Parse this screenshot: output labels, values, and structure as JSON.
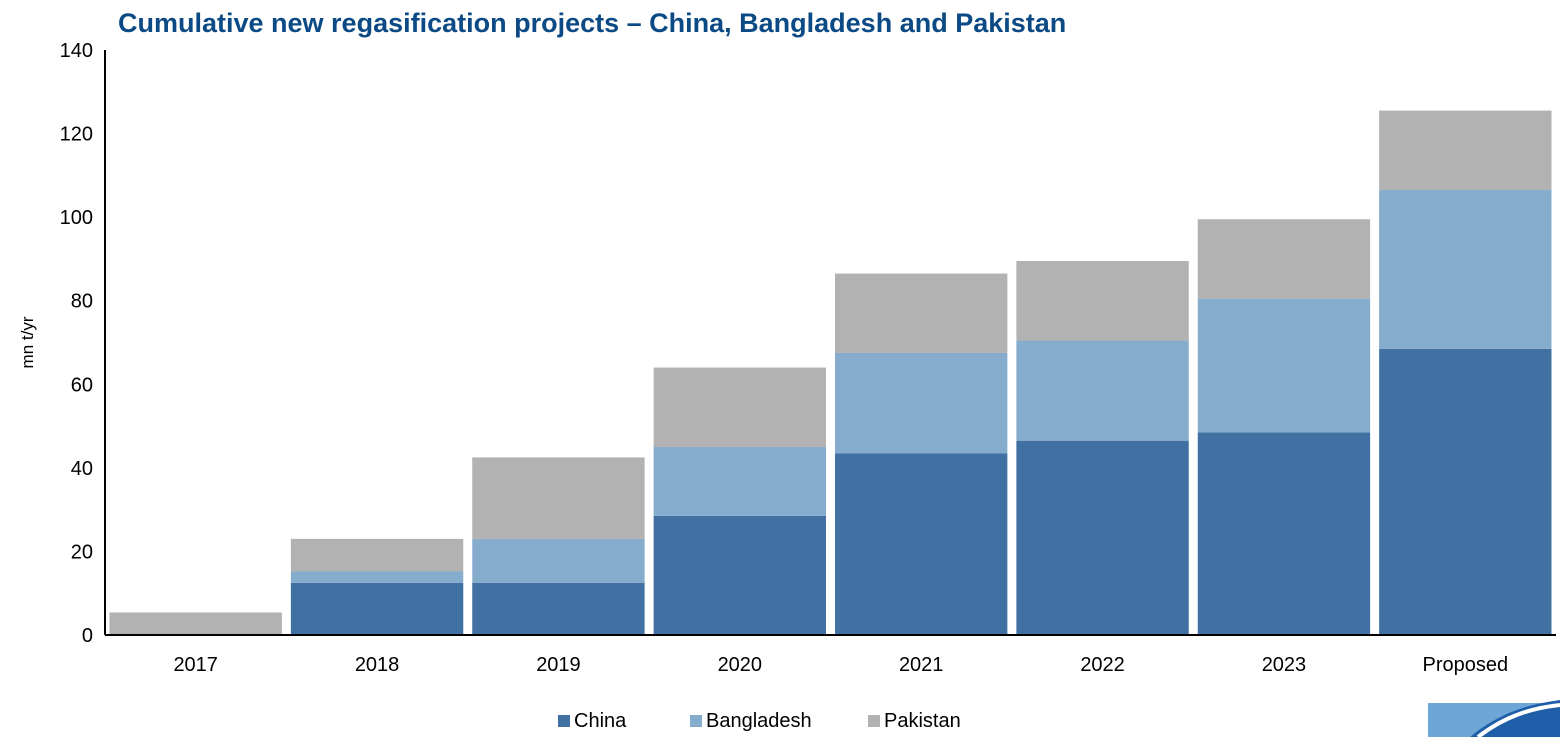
{
  "chart_data": {
    "type": "bar",
    "stacked": true,
    "title": "Cumulative new regasification projects – China, Bangladesh and Pakistan",
    "xlabel": "",
    "ylabel": "mn t/yr",
    "ylim": [
      0,
      140
    ],
    "yticks": [
      0,
      20,
      40,
      60,
      80,
      100,
      120,
      140
    ],
    "grid": false,
    "legend_position": "bottom",
    "categories": [
      "2017",
      "2018",
      "2019",
      "2020",
      "2021",
      "2022",
      "2023",
      "Proposed"
    ],
    "series": [
      {
        "name": "China",
        "color": "#4071a2",
        "values": [
          0,
          12.5,
          12.5,
          28.5,
          43.5,
          46.5,
          48.5,
          68.5
        ]
      },
      {
        "name": "Bangladesh",
        "color": "#86accd",
        "values": [
          0,
          2.7,
          10.5,
          16.5,
          24,
          24,
          32,
          38
        ]
      },
      {
        "name": "Pakistan",
        "color": "#b2b2b2",
        "values": [
          5.4,
          7.8,
          19.5,
          19,
          19,
          19,
          19,
          19
        ]
      }
    ]
  }
}
